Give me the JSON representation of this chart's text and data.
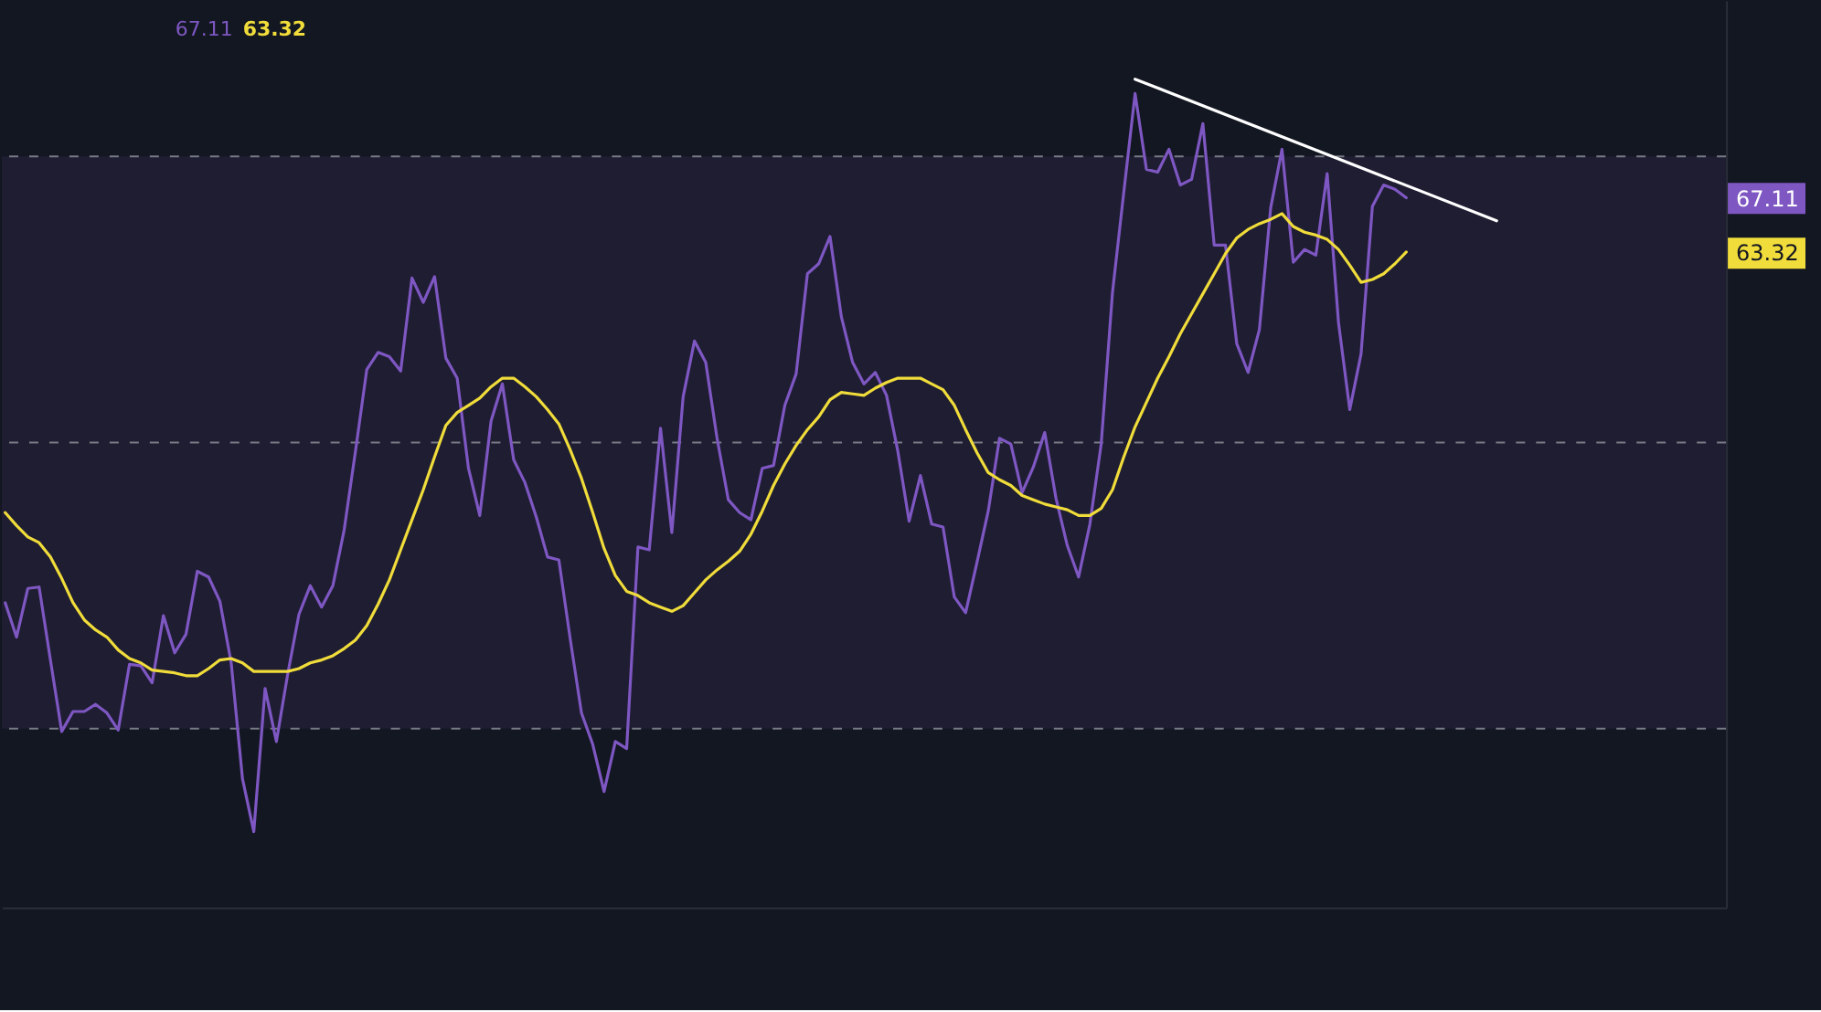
{
  "chart_data": {
    "type": "line",
    "annotations": [
      "67.11",
      "63.32"
    ],
    "categories": [
      null,
      null,
      null,
      null,
      null,
      null,
      null,
      null,
      null,
      null,
      null,
      null,
      null,
      null,
      null,
      null,
      null,
      null,
      null,
      null,
      null,
      null,
      null,
      null,
      null,
      null,
      null,
      null,
      null,
      null,
      null,
      null,
      null,
      null,
      null,
      null,
      null,
      null,
      null,
      null,
      null,
      null,
      null,
      null,
      null,
      null,
      null,
      null,
      null,
      null,
      null,
      null,
      null,
      null,
      null,
      null,
      null,
      null,
      null,
      null,
      null,
      null,
      null,
      null,
      null,
      null,
      null,
      null,
      null,
      null,
      null,
      null,
      null,
      null,
      null,
      null,
      null,
      null,
      null,
      null,
      null,
      null,
      null,
      null,
      null,
      null,
      null,
      null,
      null,
      null,
      null,
      null,
      null,
      null,
      null,
      null,
      null,
      null,
      null,
      null,
      null,
      null,
      null,
      null,
      null,
      null,
      null,
      null,
      null,
      null,
      null,
      null,
      null,
      null,
      null,
      null,
      null,
      null,
      null,
      null,
      null,
      null,
      null,
      null,
      null,
      null,
      null,
      null,
      null,
      null,
      null,
      null,
      null,
      null,
      null,
      null,
      null,
      null,
      null,
      null,
      null,
      null,
      null,
      null,
      null,
      null,
      null,
      null,
      null,
      null,
      null,
      null,
      null
    ],
    "series": [
      {
        "color": "#7e57c2",
        "values": [
          38.8,
          36.4,
          39.8,
          39.9,
          34.8,
          29.8,
          31.2,
          31.2,
          31.7,
          31.1,
          29.9,
          34.5,
          34.4,
          33.2,
          37.9,
          35.3,
          36.6,
          41.0,
          40.6,
          38.9,
          34.6,
          26.5,
          22.8,
          32.8,
          29.1,
          33.8,
          38.0,
          40.0,
          38.5,
          40.0,
          43.9,
          49.4,
          55.1,
          56.3,
          56.0,
          55.0,
          61.5,
          59.8,
          61.6,
          55.9,
          54.5,
          48.2,
          44.9,
          51.5,
          54.1,
          48.8,
          47.2,
          44.8,
          42.0,
          41.8,
          36.3,
          31.1,
          28.9,
          25.6,
          29.1,
          28.6,
          42.7,
          42.5,
          51.0,
          43.7,
          53.2,
          57.1,
          55.6,
          50.3,
          46.0,
          45.1,
          44.6,
          48.2,
          48.4,
          52.6,
          54.8,
          61.8,
          62.5,
          64.4,
          58.8,
          55.6,
          54.1,
          54.9,
          53.3,
          49.4,
          44.5,
          47.7,
          44.3,
          44.1,
          39.2,
          38.1,
          41.6,
          45.2,
          50.3,
          49.9,
          46.5,
          48.3,
          50.7,
          46.1,
          42.8,
          40.6,
          44.3,
          49.9,
          60.5,
          67.5,
          74.4,
          69.1,
          68.9,
          70.5,
          68.0,
          68.4,
          72.3,
          63.8,
          63.8,
          56.9,
          54.9,
          57.9,
          66.4,
          70.5,
          62.6,
          63.5,
          63.1,
          68.8,
          58.4,
          52.3,
          56.2,
          66.5,
          68.0,
          67.7,
          67.11,
          null,
          null,
          null,
          null,
          null,
          null,
          null,
          null,
          null,
          null,
          null,
          null,
          null,
          null,
          null,
          null,
          null,
          null,
          null,
          null,
          null,
          null,
          null,
          null,
          null,
          null,
          null,
          null
        ]
      },
      {
        "color": "#f0dc3a",
        "values": [
          45.1,
          44.2,
          43.4,
          43.0,
          42.0,
          40.5,
          38.8,
          37.6,
          36.9,
          36.4,
          35.5,
          34.9,
          34.6,
          34.1,
          34.0,
          33.9,
          33.7,
          33.7,
          34.2,
          34.8,
          34.9,
          34.6,
          34.0,
          34.0,
          34.0,
          34.0,
          34.2,
          34.6,
          34.8,
          35.1,
          35.6,
          36.2,
          37.2,
          38.7,
          40.4,
          42.5,
          44.6,
          46.7,
          49.0,
          51.2,
          52.1,
          52.6,
          53.1,
          53.9,
          54.5,
          54.5,
          53.9,
          53.2,
          52.3,
          51.3,
          49.5,
          47.5,
          45.1,
          42.6,
          40.7,
          39.6,
          39.3,
          38.8,
          38.5,
          38.2,
          38.6,
          39.5,
          40.4,
          41.1,
          41.7,
          42.4,
          43.6,
          45.2,
          47.0,
          48.5,
          49.8,
          50.9,
          51.8,
          53.0,
          53.5,
          53.4,
          53.3,
          53.8,
          54.2,
          54.5,
          54.5,
          54.5,
          54.1,
          53.7,
          52.6,
          50.9,
          49.3,
          47.9,
          47.4,
          47.0,
          46.3,
          46.0,
          45.7,
          45.5,
          45.3,
          44.9,
          44.9,
          45.4,
          46.7,
          49.0,
          51.1,
          52.8,
          54.5,
          56.0,
          57.6,
          59.0,
          60.4,
          61.8,
          63.2,
          64.3,
          64.9,
          65.3,
          65.6,
          66.0,
          65.1,
          64.7,
          64.5,
          64.2,
          63.5,
          62.4,
          61.2,
          61.4,
          61.8,
          62.5,
          63.32,
          null,
          null,
          null,
          null,
          null,
          null,
          null,
          null,
          null,
          null,
          null,
          null,
          null,
          null,
          null,
          null,
          null,
          null,
          null,
          null,
          null,
          null,
          null,
          null,
          null,
          null,
          null,
          null
        ]
      },
      {
        "color": "#ffffff",
        "values": [
          null,
          null,
          null,
          null,
          null,
          null,
          null,
          null,
          null,
          null,
          null,
          null,
          null,
          null,
          null,
          null,
          null,
          null,
          null,
          null,
          null,
          null,
          null,
          null,
          null,
          null,
          null,
          null,
          null,
          null,
          null,
          null,
          null,
          null,
          null,
          null,
          null,
          null,
          null,
          null,
          null,
          null,
          null,
          null,
          null,
          null,
          null,
          null,
          null,
          null,
          null,
          null,
          null,
          null,
          null,
          null,
          null,
          null,
          null,
          null,
          null,
          null,
          null,
          null,
          null,
          null,
          null,
          null,
          null,
          null,
          null,
          null,
          null,
          null,
          null,
          null,
          null,
          null,
          null,
          null,
          null,
          null,
          null,
          null,
          null,
          null,
          null,
          null,
          null,
          null,
          null,
          null,
          null,
          null,
          null,
          null,
          null,
          null,
          null,
          null,
          75.4,
          null,
          null,
          null,
          null,
          null,
          null,
          null,
          null,
          null,
          null,
          null,
          null,
          null,
          null,
          null,
          null,
          null,
          null,
          null,
          null,
          null,
          null,
          null,
          null,
          null,
          null,
          null,
          null,
          null,
          null,
          null,
          65.5,
          null,
          null,
          null,
          null,
          null,
          null,
          null,
          null,
          null,
          null,
          null,
          null,
          null,
          null,
          null,
          null,
          null,
          null,
          null,
          null
        ]
      }
    ],
    "ylim": [
      17.5,
      80.9
    ],
    "yticks": [
      67.11,
      63.32
    ],
    "ref_lines": [
      {
        "axis": "y",
        "value": 70,
        "color": "#787b86",
        "line_style": "dashed"
      },
      {
        "axis": "y",
        "value": 50,
        "color": "#787b86",
        "line_style": "dashed"
      },
      {
        "axis": "y",
        "value": 30,
        "color": "#787b86",
        "line_style": "dashed"
      }
    ],
    "bands": [
      {
        "axis": "y",
        "from": 30,
        "to": 70,
        "color": "#1e1d32"
      }
    ],
    "tick_labels": "y"
  }
}
